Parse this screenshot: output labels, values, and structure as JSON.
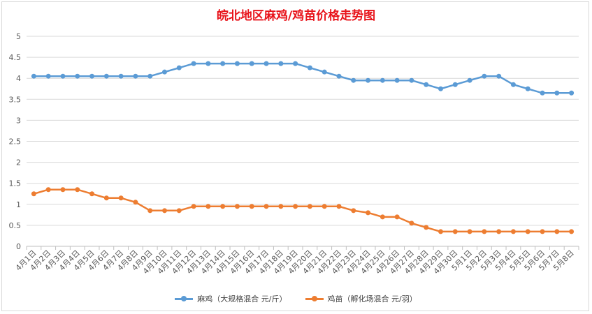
{
  "chart_data": {
    "type": "line",
    "title": "皖北地区麻鸡/鸡苗价格走势图",
    "categories": [
      "4月1日",
      "4月2日",
      "4月3日",
      "4月4日",
      "4月5日",
      "4月6日",
      "4月7日",
      "4月8日",
      "4月9日",
      "4月10日",
      "4月11日",
      "4月12日",
      "4月13日",
      "4月14日",
      "4月15日",
      "4月16日",
      "4月17日",
      "4月18日",
      "4月19日",
      "4月20日",
      "4月21日",
      "4月22日",
      "4月23日",
      "4月24日",
      "4月25日",
      "4月26日",
      "4月27日",
      "4月28日",
      "4月29日",
      "4月30日",
      "5月1日",
      "5月2日",
      "5月3日",
      "5月4日",
      "5月5日",
      "5月6日",
      "5月7日",
      "5月8日"
    ],
    "series": [
      {
        "name": "麻鸡（大规格混合 元/斤）",
        "color": "#5b9bd5",
        "values": [
          4.05,
          4.05,
          4.05,
          4.05,
          4.05,
          4.05,
          4.05,
          4.05,
          4.05,
          4.15,
          4.25,
          4.35,
          4.35,
          4.35,
          4.35,
          4.35,
          4.35,
          4.35,
          4.35,
          4.25,
          4.15,
          4.05,
          3.95,
          3.95,
          3.95,
          3.95,
          3.95,
          3.85,
          3.75,
          3.85,
          3.95,
          4.05,
          4.05,
          3.85,
          3.75,
          3.65,
          3.65,
          3.65
        ]
      },
      {
        "name": "鸡苗（孵化场混合 元/羽）",
        "color": "#ed7d31",
        "values": [
          1.25,
          1.35,
          1.35,
          1.35,
          1.25,
          1.15,
          1.15,
          1.05,
          0.85,
          0.85,
          0.85,
          0.95,
          0.95,
          0.95,
          0.95,
          0.95,
          0.95,
          0.95,
          0.95,
          0.95,
          0.95,
          0.95,
          0.85,
          0.8,
          0.7,
          0.7,
          0.55,
          0.45,
          0.35,
          0.35,
          0.35,
          0.35,
          0.35,
          0.35,
          0.35,
          0.35,
          0.35,
          0.35
        ]
      }
    ],
    "yticks": [
      "0",
      "0.5",
      "1",
      "1.5",
      "2",
      "2.5",
      "3",
      "3.5",
      "4",
      "4.5",
      "5"
    ],
    "ylim": [
      0,
      5
    ],
    "grid": true,
    "legend_position": "bottom"
  }
}
